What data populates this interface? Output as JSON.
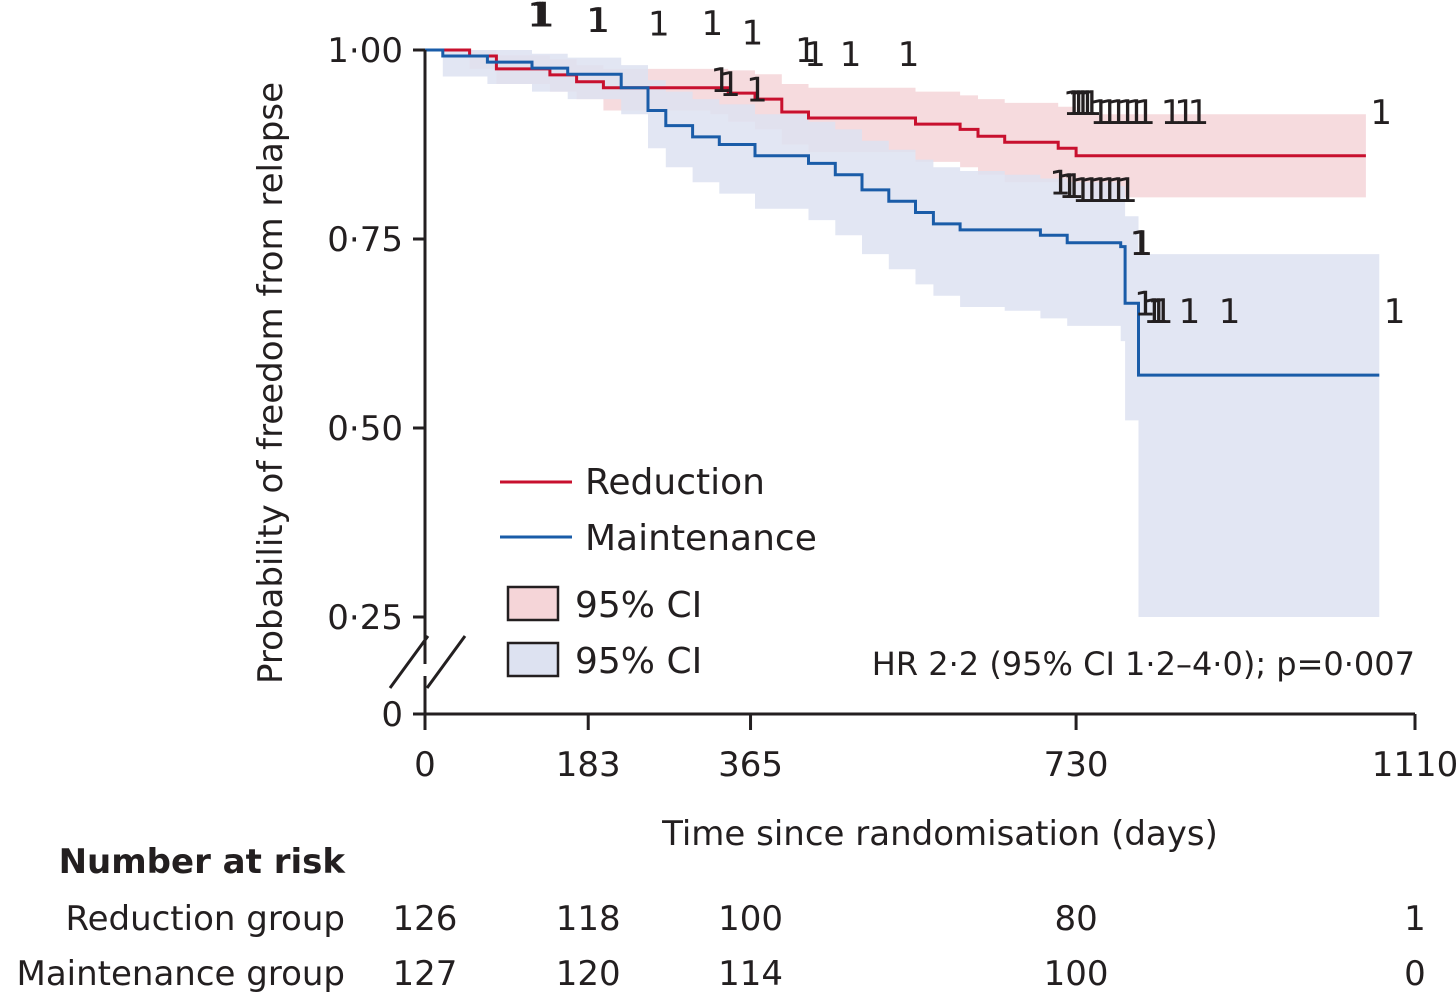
{
  "chart_data": {
    "type": "line",
    "xlabel": "Time since randomisation (days)",
    "ylabel": "Probability of freedom from relapse",
    "xlim": [
      0,
      1110
    ],
    "ylim": [
      0,
      1
    ],
    "x_ticks": [
      0,
      183,
      365,
      730,
      1110
    ],
    "x_tick_labels": [
      "0",
      "183",
      "365",
      "730",
      "1110"
    ],
    "y_ticks": [
      0,
      0.25,
      0.5,
      0.75,
      1.0
    ],
    "y_tick_labels": [
      "0",
      "0·25",
      "0·50",
      "0·75",
      "1·00"
    ],
    "axis_break": "y-axis between 0 and 0·25",
    "legend": {
      "position": "lower-left",
      "lines": [
        "Reduction",
        "Maintenance"
      ],
      "bands": [
        "95% CI",
        "95% CI"
      ]
    },
    "annotation": "HR 2·2 (95% CI 1·2–4·0); p=0·007",
    "censor_mark_label": "1",
    "series": [
      {
        "name": "Reduction",
        "color": "#c8102e",
        "ci_color": "#f5d5d8",
        "steps": [
          [
            0,
            1.0
          ],
          [
            50,
            0.992
          ],
          [
            80,
            0.975
          ],
          [
            140,
            0.967
          ],
          [
            170,
            0.958
          ],
          [
            200,
            0.95
          ],
          [
            320,
            0.95
          ],
          [
            340,
            0.943
          ],
          [
            370,
            0.935
          ],
          [
            400,
            0.918
          ],
          [
            430,
            0.91
          ],
          [
            550,
            0.902
          ],
          [
            600,
            0.895
          ],
          [
            620,
            0.886
          ],
          [
            650,
            0.878
          ],
          [
            710,
            0.87
          ],
          [
            730,
            0.86
          ],
          [
            1055,
            0.86
          ]
        ],
        "ci_lower": [
          [
            0,
            1.0
          ],
          [
            50,
            0.975
          ],
          [
            80,
            0.955
          ],
          [
            140,
            0.945
          ],
          [
            170,
            0.935
          ],
          [
            200,
            0.92
          ],
          [
            320,
            0.915
          ],
          [
            340,
            0.905
          ],
          [
            370,
            0.895
          ],
          [
            400,
            0.875
          ],
          [
            430,
            0.865
          ],
          [
            550,
            0.852
          ],
          [
            600,
            0.845
          ],
          [
            620,
            0.835
          ],
          [
            650,
            0.825
          ],
          [
            710,
            0.815
          ],
          [
            730,
            0.805
          ],
          [
            1055,
            0.805
          ]
        ],
        "ci_upper": [
          [
            0,
            1.0
          ],
          [
            50,
            1.0
          ],
          [
            80,
            0.993
          ],
          [
            140,
            0.988
          ],
          [
            170,
            0.98
          ],
          [
            200,
            0.975
          ],
          [
            320,
            0.975
          ],
          [
            340,
            0.973
          ],
          [
            370,
            0.968
          ],
          [
            400,
            0.955
          ],
          [
            430,
            0.95
          ],
          [
            550,
            0.945
          ],
          [
            600,
            0.94
          ],
          [
            620,
            0.935
          ],
          [
            650,
            0.93
          ],
          [
            710,
            0.925
          ],
          [
            730,
            0.915
          ],
          [
            1055,
            0.915
          ]
        ],
        "censored": [
          [
            115,
            1.047
          ],
          [
            118,
            1.047
          ],
          [
            121,
            1.047
          ],
          [
            181,
            1.04
          ],
          [
            183,
            1.04
          ],
          [
            250,
            1.035
          ],
          [
            310,
            1.036
          ],
          [
            355,
            1.023
          ],
          [
            415,
            1.0
          ],
          [
            425,
            0.995
          ],
          [
            465,
            0.995
          ],
          [
            530,
            0.995
          ],
          [
            320,
            0.96
          ],
          [
            330,
            0.955
          ],
          [
            360,
            0.948
          ],
          [
            715,
            0.93
          ],
          [
            720,
            0.93
          ],
          [
            725,
            0.93
          ],
          [
            730,
            0.93
          ],
          [
            735,
            0.93
          ],
          [
            745,
            0.918
          ],
          [
            755,
            0.918
          ],
          [
            765,
            0.918
          ],
          [
            775,
            0.918
          ],
          [
            785,
            0.918
          ],
          [
            795,
            0.918
          ],
          [
            825,
            0.918
          ],
          [
            840,
            0.918
          ],
          [
            855,
            0.918
          ],
          [
            1060,
            0.918
          ]
        ]
      },
      {
        "name": "Maintenance",
        "color": "#1a5ca8",
        "ci_color": "#dde2f1",
        "steps": [
          [
            0,
            1.0
          ],
          [
            20,
            0.992
          ],
          [
            70,
            0.984
          ],
          [
            120,
            0.976
          ],
          [
            160,
            0.968
          ],
          [
            220,
            0.95
          ],
          [
            250,
            0.92
          ],
          [
            270,
            0.9
          ],
          [
            300,
            0.885
          ],
          [
            330,
            0.875
          ],
          [
            370,
            0.86
          ],
          [
            430,
            0.85
          ],
          [
            460,
            0.835
          ],
          [
            490,
            0.815
          ],
          [
            520,
            0.8
          ],
          [
            550,
            0.785
          ],
          [
            570,
            0.77
          ],
          [
            600,
            0.762
          ],
          [
            650,
            0.762
          ],
          [
            690,
            0.755
          ],
          [
            720,
            0.745
          ],
          [
            780,
            0.74
          ],
          [
            785,
            0.665
          ],
          [
            800,
            0.57
          ],
          [
            1070,
            0.57
          ]
        ],
        "ci_lower": [
          [
            0,
            1.0
          ],
          [
            20,
            0.965
          ],
          [
            70,
            0.955
          ],
          [
            120,
            0.945
          ],
          [
            160,
            0.935
          ],
          [
            220,
            0.915
          ],
          [
            250,
            0.87
          ],
          [
            270,
            0.845
          ],
          [
            300,
            0.825
          ],
          [
            330,
            0.81
          ],
          [
            370,
            0.79
          ],
          [
            430,
            0.775
          ],
          [
            460,
            0.755
          ],
          [
            490,
            0.73
          ],
          [
            520,
            0.71
          ],
          [
            550,
            0.69
          ],
          [
            570,
            0.675
          ],
          [
            600,
            0.66
          ],
          [
            650,
            0.655
          ],
          [
            690,
            0.645
          ],
          [
            720,
            0.635
          ],
          [
            780,
            0.615
          ],
          [
            785,
            0.51
          ],
          [
            800,
            0.25
          ],
          [
            1070,
            0.25
          ]
        ],
        "ci_upper": [
          [
            0,
            1.0
          ],
          [
            20,
            1.0
          ],
          [
            70,
            1.0
          ],
          [
            120,
            0.995
          ],
          [
            160,
            0.99
          ],
          [
            220,
            0.98
          ],
          [
            250,
            0.96
          ],
          [
            270,
            0.945
          ],
          [
            300,
            0.935
          ],
          [
            330,
            0.928
          ],
          [
            370,
            0.915
          ],
          [
            430,
            0.905
          ],
          [
            460,
            0.895
          ],
          [
            490,
            0.88
          ],
          [
            520,
            0.868
          ],
          [
            550,
            0.855
          ],
          [
            570,
            0.845
          ],
          [
            600,
            0.84
          ],
          [
            650,
            0.835
          ],
          [
            690,
            0.83
          ],
          [
            720,
            0.825
          ],
          [
            780,
            0.82
          ],
          [
            785,
            0.78
          ],
          [
            800,
            0.73
          ],
          [
            1070,
            0.73
          ]
        ],
        "censored": [
          [
            700,
            0.825
          ],
          [
            710,
            0.82
          ],
          [
            715,
            0.82
          ],
          [
            725,
            0.815
          ],
          [
            735,
            0.815
          ],
          [
            745,
            0.815
          ],
          [
            755,
            0.815
          ],
          [
            765,
            0.815
          ],
          [
            775,
            0.815
          ],
          [
            790,
            0.745
          ],
          [
            792,
            0.745
          ],
          [
            795,
            0.665
          ],
          [
            805,
            0.655
          ],
          [
            810,
            0.655
          ],
          [
            815,
            0.655
          ],
          [
            845,
            0.655
          ],
          [
            890,
            0.655
          ],
          [
            1075,
            0.655
          ]
        ]
      }
    ]
  },
  "risk_table": {
    "title": "Number at risk",
    "rows": [
      {
        "label": "Reduction group",
        "values": [
          "126",
          "118",
          "100",
          "80",
          "1"
        ]
      },
      {
        "label": "Maintenance group",
        "values": [
          "127",
          "120",
          "114",
          "100",
          "0"
        ]
      }
    ]
  }
}
